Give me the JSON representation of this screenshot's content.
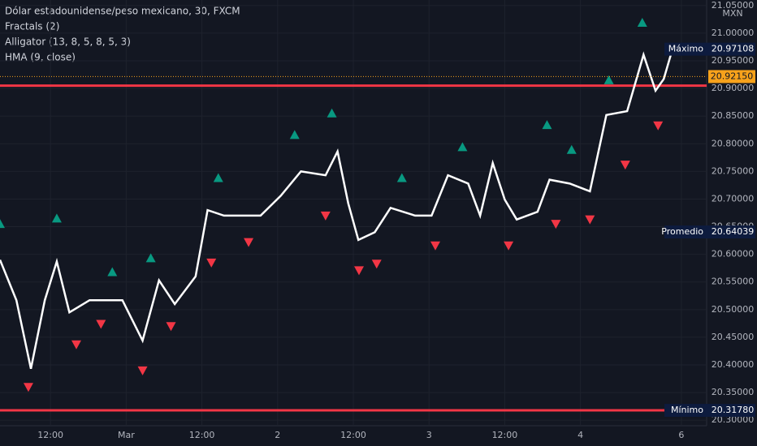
{
  "chart_data": {
    "type": "line",
    "title": "Dólar estadounidense/peso mexicano, 30, FXCM",
    "indicators": [
      "Fractals (2)",
      "Alligator (13, 8, 5, 8, 5, 3)"
    ],
    "unit": "MXN",
    "xlim": [
      4,
      116
    ],
    "xticks": [
      {
        "value": 12,
        "label": "12:00"
      },
      {
        "value": 24,
        "label": "Mar"
      },
      {
        "value": 36,
        "label": "12:00"
      },
      {
        "value": 48,
        "label": "2"
      },
      {
        "value": 60,
        "label": "12:00"
      },
      {
        "value": 72,
        "label": "3"
      },
      {
        "value": 84,
        "label": "12:00"
      },
      {
        "value": 96,
        "label": "4"
      },
      {
        "value": 112,
        "label": "6"
      }
    ],
    "ylim": [
      20.29,
      21.06
    ],
    "yticks": [
      {
        "value": 20.3,
        "label": "20.30000"
      },
      {
        "value": 20.35,
        "label": "20.35000"
      },
      {
        "value": 20.4,
        "label": "20.40000"
      },
      {
        "value": 20.45,
        "label": "20.45000"
      },
      {
        "value": 20.5,
        "label": "20.50000"
      },
      {
        "value": 20.55,
        "label": "20.55000"
      },
      {
        "value": 20.6,
        "label": "20.60000"
      },
      {
        "value": 20.65,
        "label": "20.65000"
      },
      {
        "value": 20.7,
        "label": "20.70000"
      },
      {
        "value": 20.75,
        "label": "20.75000"
      },
      {
        "value": 20.8,
        "label": "20.80000"
      },
      {
        "value": 20.85,
        "label": "20.85000"
      },
      {
        "value": 20.9,
        "label": "20.90000"
      },
      {
        "value": 20.95,
        "label": "20.95000"
      },
      {
        "value": 21.0,
        "label": "21.00000"
      },
      {
        "value": 21.05,
        "label": "21.05000"
      }
    ],
    "series": [
      {
        "name": "HMA (9, close)",
        "color": "#ffffff",
        "x": [
          4.0,
          6.6,
          8.9,
          11.1,
          13.0,
          15.0,
          18.2,
          23.4,
          26.6,
          29.2,
          31.7,
          35.0,
          36.9,
          39.5,
          45.3,
          48.5,
          51.7,
          55.6,
          57.5,
          59.2,
          60.8,
          63.4,
          65.9,
          69.8,
          72.4,
          75.0,
          78.2,
          80.1,
          82.1,
          84.0,
          85.9,
          89.2,
          91.1,
          94.3,
          97.5,
          100.1,
          103.4,
          106.0,
          107.9,
          109.2,
          110.5
        ],
        "values": [
          20.59,
          20.517,
          20.393,
          20.517,
          20.587,
          20.495,
          20.517,
          20.517,
          20.444,
          20.553,
          20.51,
          20.56,
          20.68,
          20.67,
          20.67,
          20.706,
          20.75,
          20.743,
          20.786,
          20.692,
          20.626,
          20.64,
          20.684,
          20.67,
          20.67,
          20.743,
          20.728,
          20.67,
          20.765,
          20.699,
          20.663,
          20.677,
          20.735,
          20.728,
          20.714,
          20.852,
          20.859,
          20.961,
          20.896,
          20.917,
          20.968
        ]
      }
    ],
    "fractals_up": {
      "color": "#089981",
      "x": [
        4.0,
        13.0,
        21.8,
        27.9,
        38.6,
        50.7,
        56.6,
        67.7,
        77.3,
        90.7,
        94.6,
        100.5,
        105.8
      ],
      "values": [
        20.655,
        20.665,
        20.568,
        20.593,
        20.738,
        20.816,
        20.855,
        20.738,
        20.794,
        20.834,
        20.789,
        20.915,
        21.019
      ]
    },
    "fractals_down": {
      "color": "#f23645",
      "x": [
        8.5,
        16.1,
        20.0,
        26.6,
        31.1,
        37.5,
        43.4,
        55.6,
        60.9,
        63.7,
        73.0,
        84.6,
        92.1,
        97.5,
        103.1,
        108.3
      ],
      "values": [
        20.36,
        20.437,
        20.474,
        20.39,
        20.47,
        20.585,
        20.622,
        20.67,
        20.571,
        20.583,
        20.616,
        20.616,
        20.655,
        20.663,
        20.762,
        20.833
      ]
    },
    "hlines": {
      "color": "#f23645",
      "values": [
        20.905,
        20.3178
      ]
    },
    "price_labels": [
      {
        "name": "Máximo",
        "value": 20.97108,
        "label": "20.97108"
      },
      {
        "name": "Promedio",
        "value": 20.64039,
        "label": "20.64039"
      },
      {
        "name": "Mínimo",
        "value": 20.3178,
        "label": "20.31780"
      }
    ],
    "last_price": {
      "value": 20.9215,
      "label": "20.92150",
      "color": "#f7a21b"
    }
  }
}
